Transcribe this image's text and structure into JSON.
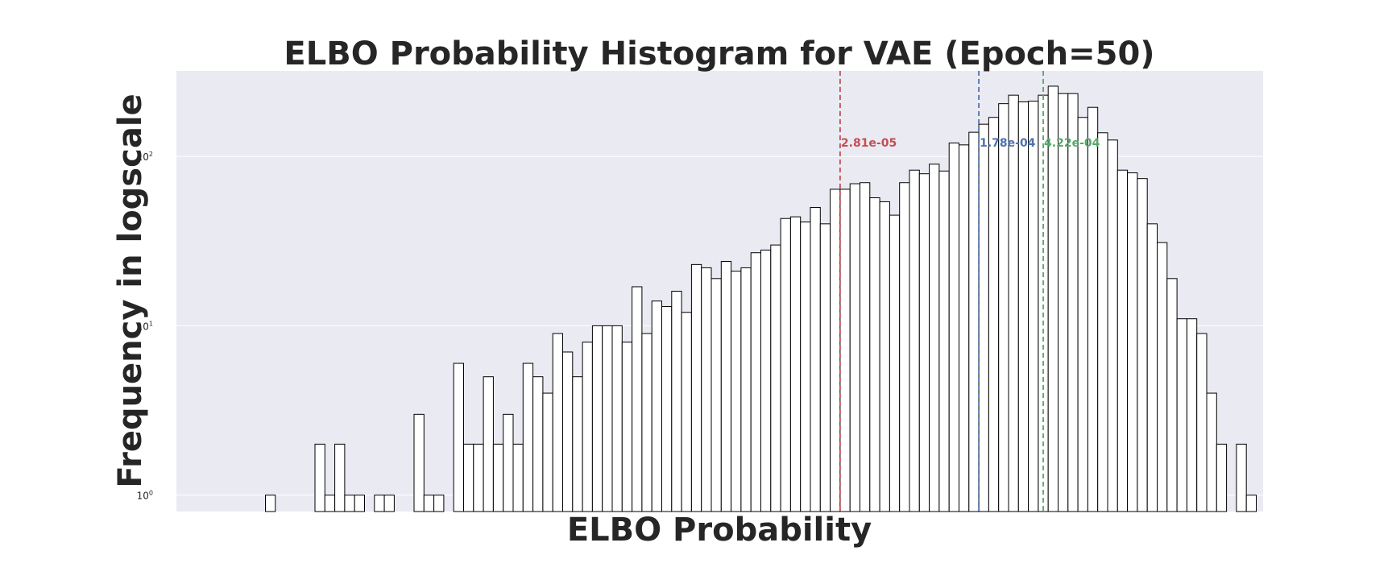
{
  "chart_data": {
    "type": "bar",
    "title": "ELBO Probability Histogram for VAE (Epoch=50)",
    "xlabel": "ELBO Probability",
    "ylabel": "Frequency in logscale",
    "yscale": "log",
    "ylim": [
      0.8,
      320
    ],
    "grid": true,
    "yticks": [
      {
        "value": 1,
        "base": "10",
        "exp": "0"
      },
      {
        "value": 10,
        "base": "10",
        "exp": "1"
      },
      {
        "value": 100,
        "base": "10",
        "exp": "2"
      }
    ],
    "bar_count": 110,
    "counts": [
      0,
      0,
      0,
      0,
      0,
      1,
      0,
      0,
      0,
      0,
      2,
      1,
      2,
      1,
      1,
      0,
      1,
      1,
      0,
      0,
      3,
      1,
      1,
      0,
      6,
      2,
      2,
      5,
      2,
      3,
      2,
      6,
      5,
      4,
      9,
      7,
      5,
      8,
      10,
      10,
      10,
      8,
      17,
      9,
      14,
      13,
      16,
      12,
      23,
      22,
      19,
      24,
      21,
      22,
      27,
      28,
      30,
      43,
      44,
      41,
      50,
      40,
      64,
      64,
      69,
      70,
      57,
      54,
      45,
      70,
      83,
      79,
      90,
      82,
      120,
      117,
      139,
      155,
      170,
      205,
      230,
      210,
      212,
      230,
      260,
      235,
      235,
      170,
      195,
      138,
      125,
      83,
      80,
      74,
      40,
      31,
      19,
      11,
      11,
      9,
      4,
      2,
      0,
      2,
      1,
      0,
      0,
      0,
      0,
      0
    ],
    "vlines": [
      {
        "bar_index": 63,
        "label": "2.81e-05",
        "color": "#c44e52"
      },
      {
        "bar_index": 77,
        "label": "1.78e-04",
        "color": "#4c72b0"
      },
      {
        "bar_index": 83.5,
        "label": "4.22e-04",
        "color": "#55a868"
      }
    ],
    "colors": {
      "plot_bg": "#eaeaf2",
      "grid": "#ffffff",
      "bar_fill": "#ffffff",
      "bar_edge": "#000000"
    }
  }
}
